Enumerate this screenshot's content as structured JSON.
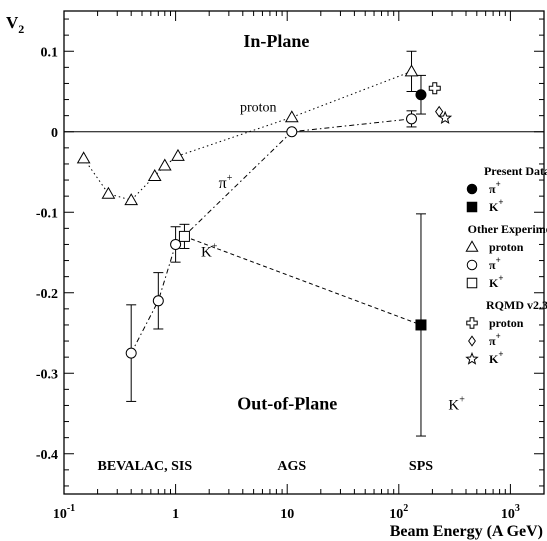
{
  "chart_data": {
    "type": "scatter",
    "xlabel": "Beam Energy (A GeV)",
    "ylabel": "V",
    "ylabel_sub": "2",
    "xscale": "log",
    "xlim": [
      0.1,
      2000
    ],
    "ylim": [
      -0.45,
      0.15
    ],
    "grid": false,
    "zero_line": true,
    "x_ticks": [
      {
        "v": 0.1,
        "base": "10",
        "exp": "-1"
      },
      {
        "v": 1,
        "base": "1",
        "exp": ""
      },
      {
        "v": 10,
        "base": "10",
        "exp": ""
      },
      {
        "v": 100,
        "base": "10",
        "exp": "2"
      },
      {
        "v": 1000,
        "base": "10",
        "exp": "3"
      }
    ],
    "y_ticks": [
      {
        "v": 0.1,
        "label": "0.1"
      },
      {
        "v": 0,
        "label": "0"
      },
      {
        "v": -0.1,
        "label": "-0.1"
      },
      {
        "v": -0.2,
        "label": "-0.2"
      },
      {
        "v": -0.3,
        "label": "-0.3"
      },
      {
        "v": -0.4,
        "label": "-0.4"
      }
    ],
    "series": [
      {
        "name": "proton",
        "group": "other",
        "marker": "triangle-open",
        "line": "dotted",
        "points": [
          {
            "x": 0.15,
            "y": -0.033
          },
          {
            "x": 0.25,
            "y": -0.077
          },
          {
            "x": 0.4,
            "y": -0.085
          },
          {
            "x": 0.65,
            "y": -0.055
          },
          {
            "x": 0.8,
            "y": -0.042
          },
          {
            "x": 1.05,
            "y": -0.03
          },
          {
            "x": 11,
            "y": 0.018
          },
          {
            "x": 130,
            "y": 0.075,
            "err": 0.025
          }
        ]
      },
      {
        "name": "π+",
        "group": "other",
        "marker": "circle-open",
        "line": "dashdot",
        "points": [
          {
            "x": 0.4,
            "y": -0.275,
            "err": 0.06
          },
          {
            "x": 0.7,
            "y": -0.21,
            "err": 0.035
          },
          {
            "x": 1.0,
            "y": -0.14,
            "err": 0.022
          },
          {
            "x": 11,
            "y": 0.0
          },
          {
            "x": 130,
            "y": 0.016,
            "err": 0.01
          }
        ]
      },
      {
        "name": "K+",
        "group": "other",
        "marker": "square-open",
        "line": "dashed",
        "points": [
          {
            "x": 1.2,
            "y": -0.13,
            "err": 0.015
          }
        ]
      },
      {
        "name": "π+",
        "group": "present",
        "marker": "circle-filled",
        "points": [
          {
            "x": 158,
            "y": 0.046,
            "err": 0.024
          }
        ]
      },
      {
        "name": "K+",
        "group": "present",
        "marker": "square-filled",
        "points": [
          {
            "x": 158,
            "y": -0.24,
            "err": 0.138
          }
        ]
      },
      {
        "name": "proton",
        "group": "rqmd",
        "marker": "cross-open",
        "points": [
          {
            "x": 210,
            "y": 0.054
          }
        ]
      },
      {
        "name": "π+",
        "group": "rqmd",
        "marker": "diamond-open",
        "points": [
          {
            "x": 230,
            "y": 0.025
          }
        ]
      },
      {
        "name": "K+",
        "group": "rqmd",
        "marker": "star-open",
        "points": [
          {
            "x": 260,
            "y": 0.017
          }
        ]
      }
    ],
    "connectors": [
      {
        "line": "dashed",
        "from": {
          "x": 1.2,
          "y": -0.13
        },
        "to": {
          "x": 158,
          "y": -0.24
        }
      }
    ],
    "annotations": [
      {
        "key": "inplane",
        "text": "In-Plane",
        "x": 8,
        "y": 0.105
      },
      {
        "key": "outplane",
        "text": "Out-of-Plane",
        "x": 10,
        "y": -0.345
      },
      {
        "key": "proton",
        "text": "proton",
        "x": 5.5,
        "y": 0.025
      },
      {
        "key": "pi",
        "text": "π",
        "sup": "+",
        "x": 2.8,
        "y": -0.07
      },
      {
        "key": "k1",
        "text": "K",
        "sup": "+",
        "x": 2.0,
        "y": -0.155
      },
      {
        "key": "k2",
        "text": "K",
        "sup": "+",
        "x": 330,
        "y": -0.345
      },
      {
        "key": "bev",
        "text": "BEVALAC, SIS",
        "x": 0.53,
        "y": -0.42
      },
      {
        "key": "ags",
        "text": "AGS",
        "x": 11,
        "y": -0.42
      },
      {
        "key": "sps",
        "text": "SPS",
        "x": 158,
        "y": -0.42
      }
    ],
    "legend": {
      "placement": "right",
      "groups": [
        {
          "title": "Present Data",
          "items": [
            {
              "marker": "circle-filled",
              "text": "π",
              "sup": "+"
            },
            {
              "marker": "square-filled",
              "text": "K",
              "sup": "+"
            }
          ]
        },
        {
          "title": "Other Experiments",
          "items": [
            {
              "marker": "triangle-open",
              "text": "proton",
              "sup": ""
            },
            {
              "marker": "circle-open",
              "text": "π",
              "sup": "+"
            },
            {
              "marker": "square-open",
              "text": "K",
              "sup": "+"
            }
          ]
        },
        {
          "title": "RQMD v2.3",
          "items": [
            {
              "marker": "cross-open",
              "text": "proton",
              "sup": ""
            },
            {
              "marker": "diamond-open",
              "text": "π",
              "sup": "+"
            },
            {
              "marker": "star-open",
              "text": "K",
              "sup": "+"
            }
          ]
        }
      ]
    }
  }
}
